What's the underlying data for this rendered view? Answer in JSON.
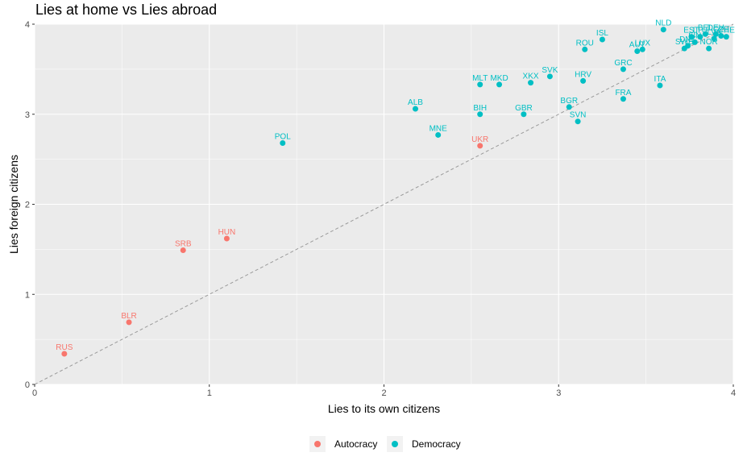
{
  "chart_data": {
    "type": "scatter",
    "title": "Lies at home vs Lies abroad",
    "xlabel": "Lies to its own citizens",
    "ylabel": "Lies foreign citizens",
    "xlim": [
      0,
      4
    ],
    "ylim": [
      0,
      4
    ],
    "xticks": [
      "0",
      "1",
      "2",
      "3",
      "4"
    ],
    "yticks": [
      "0",
      "1",
      "2",
      "3",
      "4"
    ],
    "grid": true,
    "reference_line": "y = x (dashed)",
    "legend_position": "bottom",
    "series": [
      {
        "name": "Autocracy",
        "color": "#F8766D",
        "points": [
          {
            "label": "RUS",
            "x": 0.17,
            "y": 0.34
          },
          {
            "label": "BLR",
            "x": 0.54,
            "y": 0.69
          },
          {
            "label": "SRB",
            "x": 0.85,
            "y": 1.49
          },
          {
            "label": "HUN",
            "x": 1.1,
            "y": 1.62
          },
          {
            "label": "UKR",
            "x": 2.55,
            "y": 2.65
          }
        ]
      },
      {
        "name": "Democracy",
        "color": "#00BFC4",
        "points": [
          {
            "label": "POL",
            "x": 1.42,
            "y": 2.68
          },
          {
            "label": "ALB",
            "x": 2.18,
            "y": 3.06
          },
          {
            "label": "MNE",
            "x": 2.31,
            "y": 2.77
          },
          {
            "label": "BIH",
            "x": 2.55,
            "y": 3.0
          },
          {
            "label": "MLT",
            "x": 2.55,
            "y": 3.33
          },
          {
            "label": "MKD",
            "x": 2.66,
            "y": 3.33
          },
          {
            "label": "GBR",
            "x": 2.8,
            "y": 3.0
          },
          {
            "label": "XKX",
            "x": 2.84,
            "y": 3.35
          },
          {
            "label": "SVK",
            "x": 2.95,
            "y": 3.42
          },
          {
            "label": "BGR",
            "x": 3.06,
            "y": 3.08
          },
          {
            "label": "SVN",
            "x": 3.11,
            "y": 2.92
          },
          {
            "label": "HRV",
            "x": 3.14,
            "y": 3.37
          },
          {
            "label": "ROU",
            "x": 3.15,
            "y": 3.72
          },
          {
            "label": "ISL",
            "x": 3.25,
            "y": 3.83
          },
          {
            "label": "FRA",
            "x": 3.37,
            "y": 3.17
          },
          {
            "label": "GRC",
            "x": 3.37,
            "y": 3.5
          },
          {
            "label": "AUT",
            "x": 3.45,
            "y": 3.7
          },
          {
            "label": "LUX",
            "x": 3.48,
            "y": 3.72
          },
          {
            "label": "ITA",
            "x": 3.58,
            "y": 3.32
          },
          {
            "label": "NLD",
            "x": 3.6,
            "y": 3.94
          },
          {
            "label": "SWE",
            "x": 3.72,
            "y": 3.73
          },
          {
            "label": "DNK",
            "x": 3.74,
            "y": 3.76
          },
          {
            "label": "EST",
            "x": 3.76,
            "y": 3.86
          },
          {
            "label": "FIN",
            "x": 3.78,
            "y": 3.8
          },
          {
            "label": "LTU",
            "x": 3.81,
            "y": 3.86
          },
          {
            "label": "BEL",
            "x": 3.84,
            "y": 3.89
          },
          {
            "label": "NOR",
            "x": 3.86,
            "y": 3.73
          },
          {
            "label": "LVA",
            "x": 3.89,
            "y": 3.84
          },
          {
            "label": "DEU",
            "x": 3.9,
            "y": 3.89
          },
          {
            "label": "CZE",
            "x": 3.93,
            "y": 3.87
          },
          {
            "label": "CHE",
            "x": 3.96,
            "y": 3.86
          }
        ]
      }
    ]
  }
}
